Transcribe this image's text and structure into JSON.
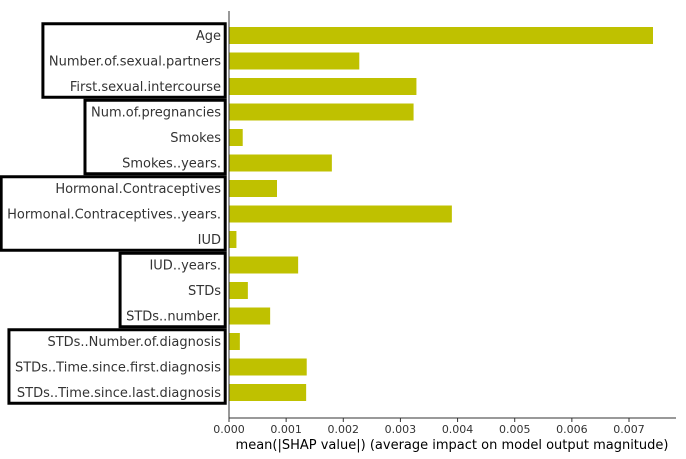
{
  "chart_data": {
    "type": "bar",
    "orientation": "horizontal",
    "categories": [
      "Age",
      "Number.of.sexual.partners",
      "First.sexual.intercourse",
      "Num.of.pregnancies",
      "Smokes",
      "Smokes..years.",
      "Hormonal.Contraceptives",
      "Hormonal.Contraceptives..years.",
      "IUD",
      "IUD..years.",
      "STDs",
      "STDs..number.",
      "STDs..Number.of.diagnosis",
      "STDs..Time.since.first.diagnosis",
      "STDs..Time.since.last.diagnosis"
    ],
    "values": [
      0.00742,
      0.00228,
      0.00328,
      0.00323,
      0.00024,
      0.0018,
      0.00084,
      0.0039,
      0.00013,
      0.00121,
      0.00033,
      0.00072,
      0.00019,
      0.00136,
      0.00135
    ],
    "xlabel": "mean(|SHAP value|) (average impact on model output magnitude)",
    "xlim": [
      0,
      0.0078
    ],
    "xticks": [
      "0.000",
      "0.001",
      "0.002",
      "0.003",
      "0.004",
      "0.005",
      "0.006",
      "0.007"
    ],
    "xtick_values": [
      0,
      0.001,
      0.002,
      0.003,
      0.004,
      0.005,
      0.006,
      0.007
    ],
    "bar_color": "#bfc100",
    "groups": [
      [
        "Age",
        "First.sexual.intercourse"
      ],
      [
        "Num.of.pregnancies",
        "Smokes..years."
      ],
      [
        "Hormonal.Contraceptives",
        "IUD"
      ],
      [
        "IUD..years.",
        "STDs..number."
      ],
      [
        "STDs..Number.of.diagnosis",
        "STDs..Time.since.last.diagnosis"
      ]
    ]
  }
}
